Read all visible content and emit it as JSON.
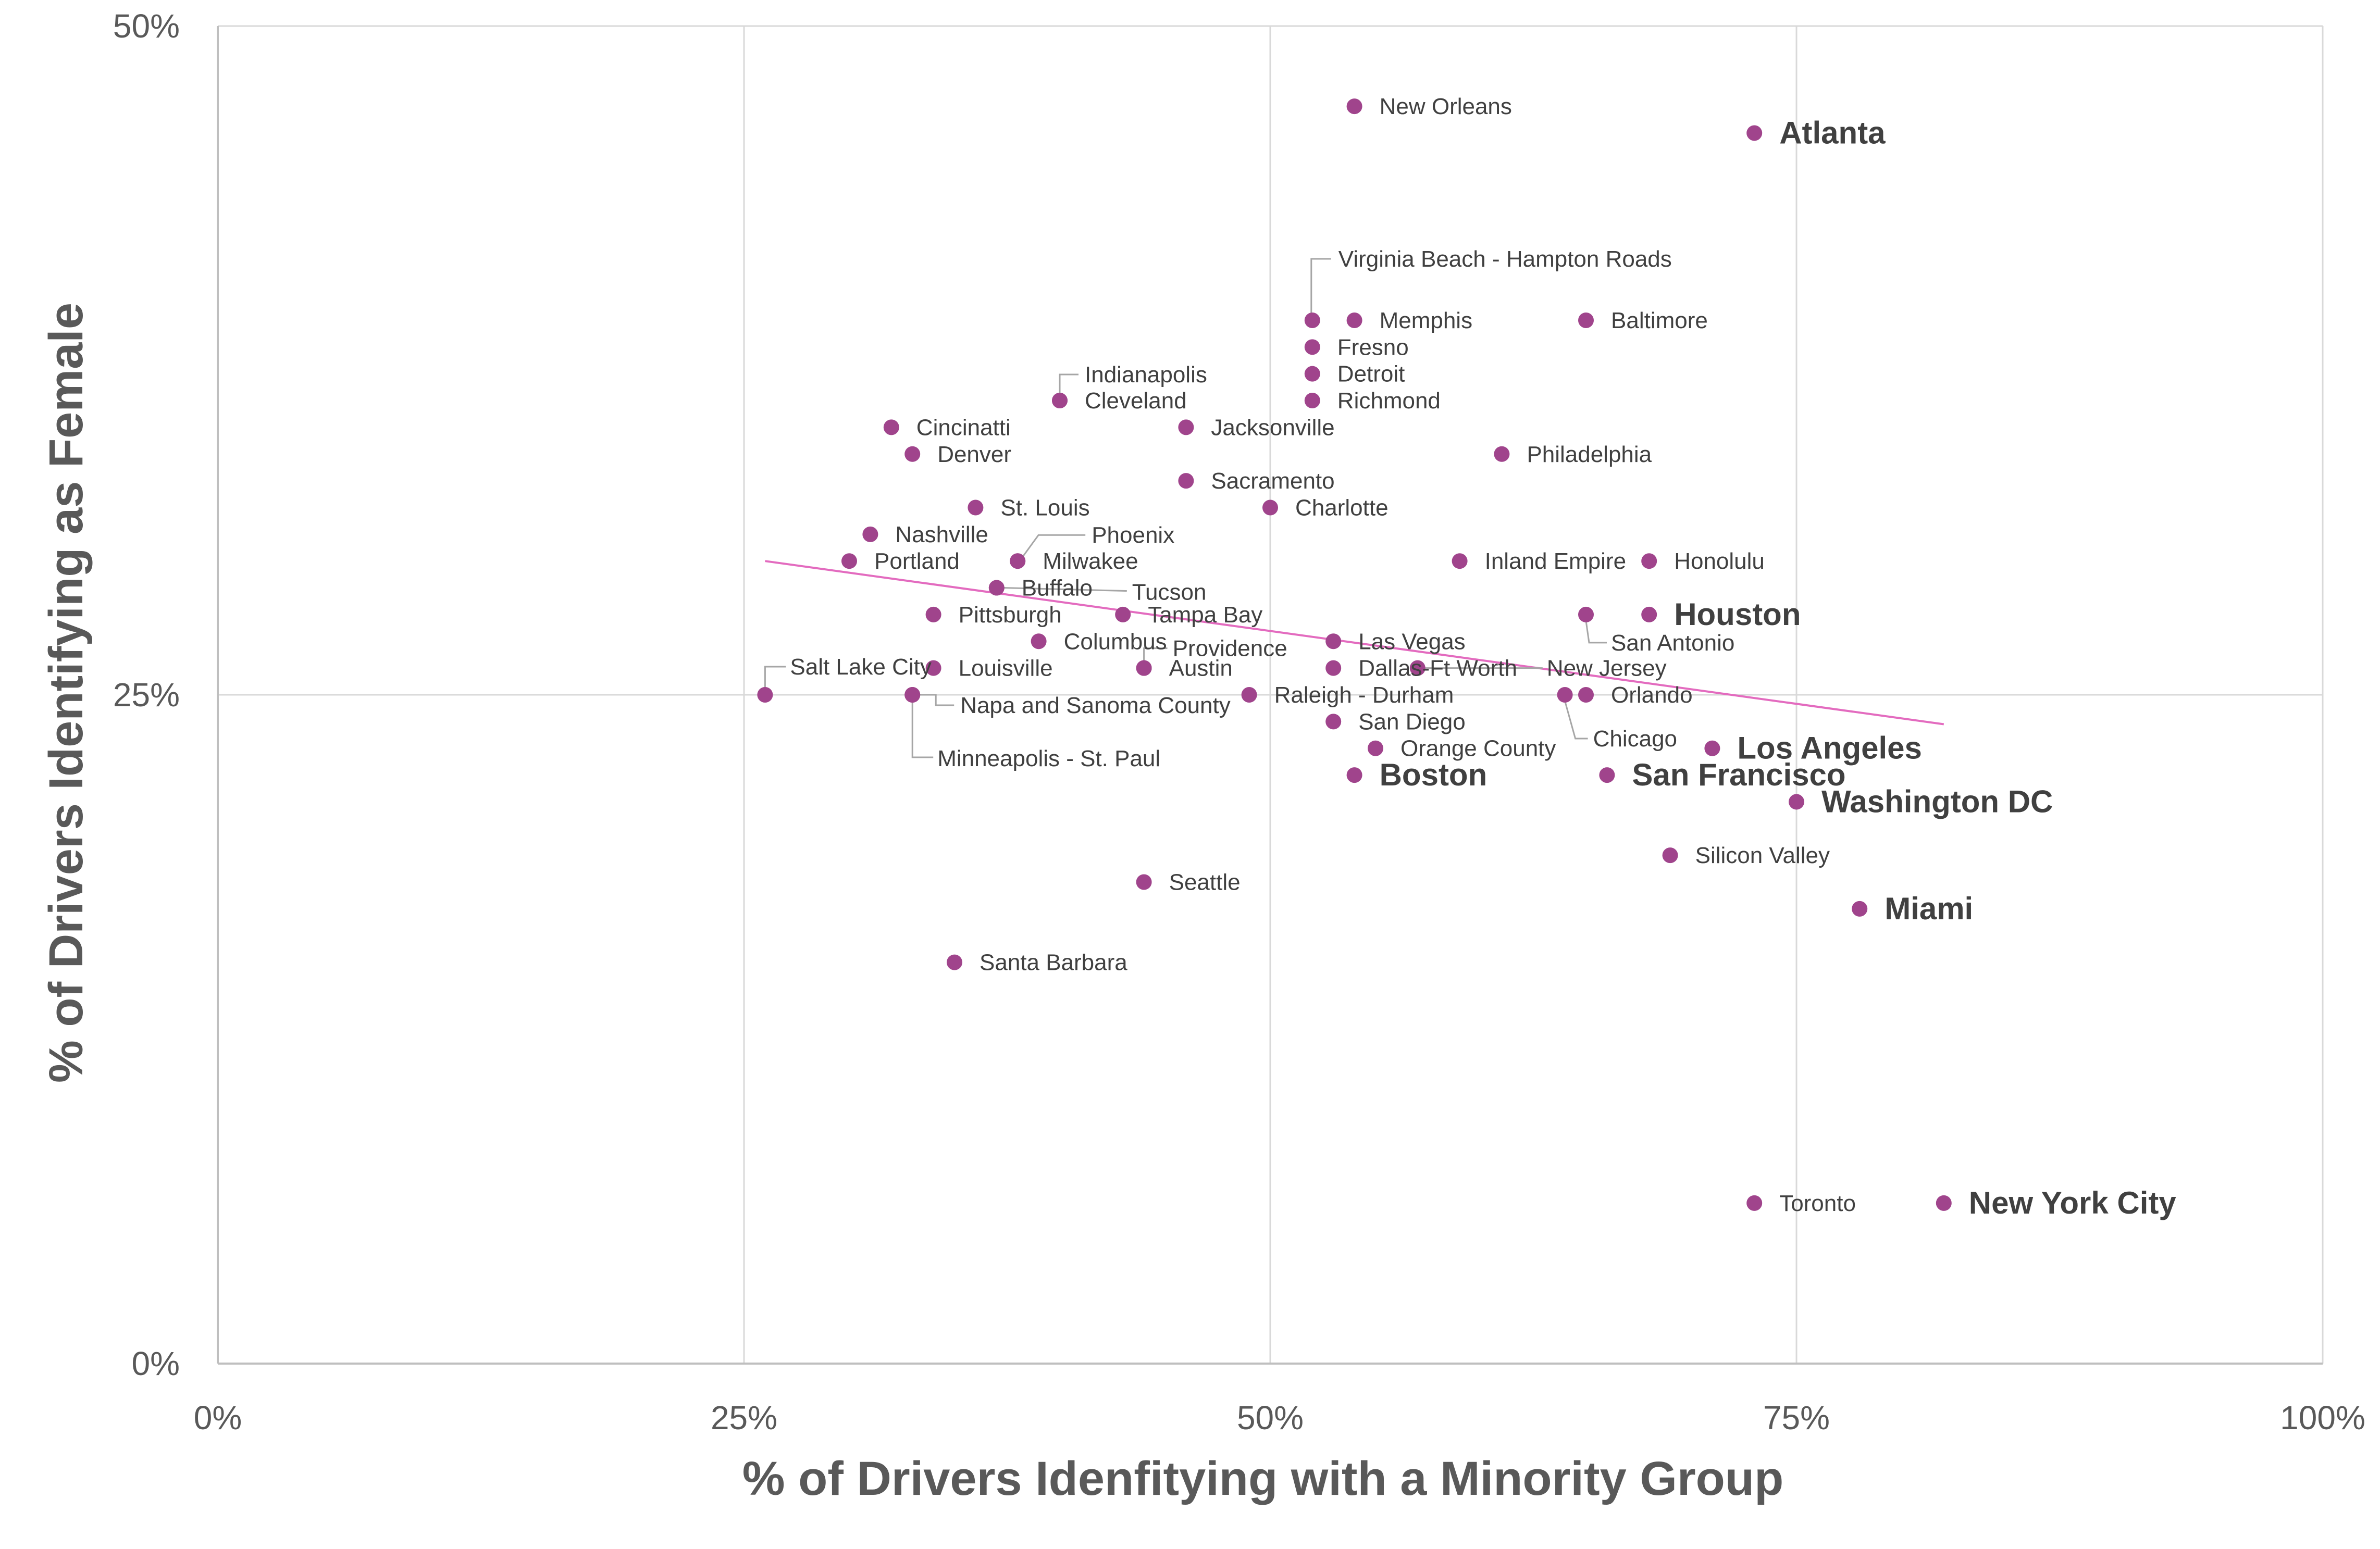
{
  "chart_data": {
    "type": "scatter",
    "title": "",
    "xlabel": "% of Drivers Idenfitying with a Minority Group",
    "ylabel": "% of Drivers Identifying as Female",
    "xlim": [
      0,
      1
    ],
    "ylim": [
      0,
      0.5
    ],
    "x_ticks": [
      "0%",
      "25%",
      "50%",
      "75%",
      "100%"
    ],
    "y_ticks": [
      "0%",
      "25%",
      "50%"
    ],
    "grid": "vertical and horizontal at tick marks",
    "marker_color": "#a0448c",
    "trendline": {
      "type": "linear",
      "color": "#e36bbf",
      "x": [
        0.26,
        0.82
      ],
      "y": [
        0.3,
        0.239
      ]
    },
    "points": [
      {
        "label": "New Orleans",
        "x": 0.54,
        "y": 0.47,
        "bold": false
      },
      {
        "label": "Atlanta",
        "x": 0.73,
        "y": 0.46,
        "bold": true
      },
      {
        "label": "Virginia Beach - Hampton Roads",
        "x": 0.52,
        "y": 0.39,
        "bold": false
      },
      {
        "label": "Memphis",
        "x": 0.54,
        "y": 0.39,
        "bold": false
      },
      {
        "label": "Baltimore",
        "x": 0.65,
        "y": 0.39,
        "bold": false
      },
      {
        "label": "Fresno",
        "x": 0.52,
        "y": 0.38,
        "bold": false
      },
      {
        "label": "Detroit",
        "x": 0.52,
        "y": 0.37,
        "bold": false
      },
      {
        "label": "Richmond",
        "x": 0.52,
        "y": 0.36,
        "bold": false
      },
      {
        "label": "Indianapolis",
        "x": 0.4,
        "y": 0.36,
        "bold": false
      },
      {
        "label": "Cleveland",
        "x": 0.4,
        "y": 0.36,
        "bold": false
      },
      {
        "label": "Jacksonville",
        "x": 0.46,
        "y": 0.35,
        "bold": false
      },
      {
        "label": "Cincinatti",
        "x": 0.32,
        "y": 0.35,
        "bold": false
      },
      {
        "label": "Denver",
        "x": 0.33,
        "y": 0.34,
        "bold": false
      },
      {
        "label": "Philadelphia",
        "x": 0.61,
        "y": 0.34,
        "bold": false
      },
      {
        "label": "Sacramento",
        "x": 0.46,
        "y": 0.33,
        "bold": false
      },
      {
        "label": "St. Louis",
        "x": 0.36,
        "y": 0.32,
        "bold": false
      },
      {
        "label": "Charlotte",
        "x": 0.5,
        "y": 0.32,
        "bold": false
      },
      {
        "label": "Nashville",
        "x": 0.31,
        "y": 0.31,
        "bold": false
      },
      {
        "label": "Phoenix",
        "x": 0.38,
        "y": 0.3,
        "bold": false
      },
      {
        "label": "Milwakee",
        "x": 0.38,
        "y": 0.3,
        "bold": false
      },
      {
        "label": "Portland",
        "x": 0.3,
        "y": 0.3,
        "bold": false
      },
      {
        "label": "Inland Empire",
        "x": 0.59,
        "y": 0.3,
        "bold": false
      },
      {
        "label": "Honolulu",
        "x": 0.68,
        "y": 0.3,
        "bold": false
      },
      {
        "label": "Buffalo",
        "x": 0.37,
        "y": 0.29,
        "bold": false
      },
      {
        "label": "Tucson",
        "x": 0.37,
        "y": 0.29,
        "bold": false
      },
      {
        "label": "Pittsburgh",
        "x": 0.34,
        "y": 0.28,
        "bold": false
      },
      {
        "label": "Tampa Bay",
        "x": 0.43,
        "y": 0.28,
        "bold": false
      },
      {
        "label": "Houston",
        "x": 0.68,
        "y": 0.28,
        "bold": true
      },
      {
        "label": "San Antonio",
        "x": 0.65,
        "y": 0.28,
        "bold": false
      },
      {
        "label": "Columbus",
        "x": 0.39,
        "y": 0.27,
        "bold": false
      },
      {
        "label": "Providence",
        "x": 0.44,
        "y": 0.26,
        "bold": false
      },
      {
        "label": "Las Vegas",
        "x": 0.53,
        "y": 0.27,
        "bold": false
      },
      {
        "label": "Salt Lake City",
        "x": 0.26,
        "y": 0.25,
        "bold": false
      },
      {
        "label": "Louisville",
        "x": 0.34,
        "y": 0.26,
        "bold": false
      },
      {
        "label": "Austin",
        "x": 0.44,
        "y": 0.26,
        "bold": false
      },
      {
        "label": "Dallas-Ft Worth",
        "x": 0.53,
        "y": 0.26,
        "bold": false
      },
      {
        "label": "New Jersey",
        "x": 0.57,
        "y": 0.26,
        "bold": false
      },
      {
        "label": "Napa and Sanoma County",
        "x": 0.33,
        "y": 0.25,
        "bold": false
      },
      {
        "label": "Raleigh - Durham",
        "x": 0.49,
        "y": 0.25,
        "bold": false
      },
      {
        "label": "Orlando",
        "x": 0.65,
        "y": 0.25,
        "bold": false
      },
      {
        "label": "Chicago",
        "x": 0.64,
        "y": 0.25,
        "bold": false
      },
      {
        "label": "San Diego",
        "x": 0.53,
        "y": 0.24,
        "bold": false
      },
      {
        "label": "Orange County",
        "x": 0.55,
        "y": 0.23,
        "bold": false
      },
      {
        "label": "Minneapolis - St. Paul",
        "x": 0.33,
        "y": 0.25,
        "bold": false
      },
      {
        "label": "Los Angeles",
        "x": 0.71,
        "y": 0.23,
        "bold": true
      },
      {
        "label": "Boston",
        "x": 0.54,
        "y": 0.22,
        "bold": true
      },
      {
        "label": "San Francisco",
        "x": 0.66,
        "y": 0.22,
        "bold": true
      },
      {
        "label": "Washington DC",
        "x": 0.75,
        "y": 0.21,
        "bold": true
      },
      {
        "label": "Silicon Valley",
        "x": 0.69,
        "y": 0.19,
        "bold": false
      },
      {
        "label": "Seattle",
        "x": 0.44,
        "y": 0.18,
        "bold": false
      },
      {
        "label": "Miami",
        "x": 0.78,
        "y": 0.17,
        "bold": true
      },
      {
        "label": "Santa Barbara",
        "x": 0.35,
        "y": 0.15,
        "bold": false
      },
      {
        "label": "Toronto",
        "x": 0.73,
        "y": 0.06,
        "bold": false
      },
      {
        "label": "New York City",
        "x": 0.82,
        "y": 0.06,
        "bold": true
      }
    ]
  }
}
